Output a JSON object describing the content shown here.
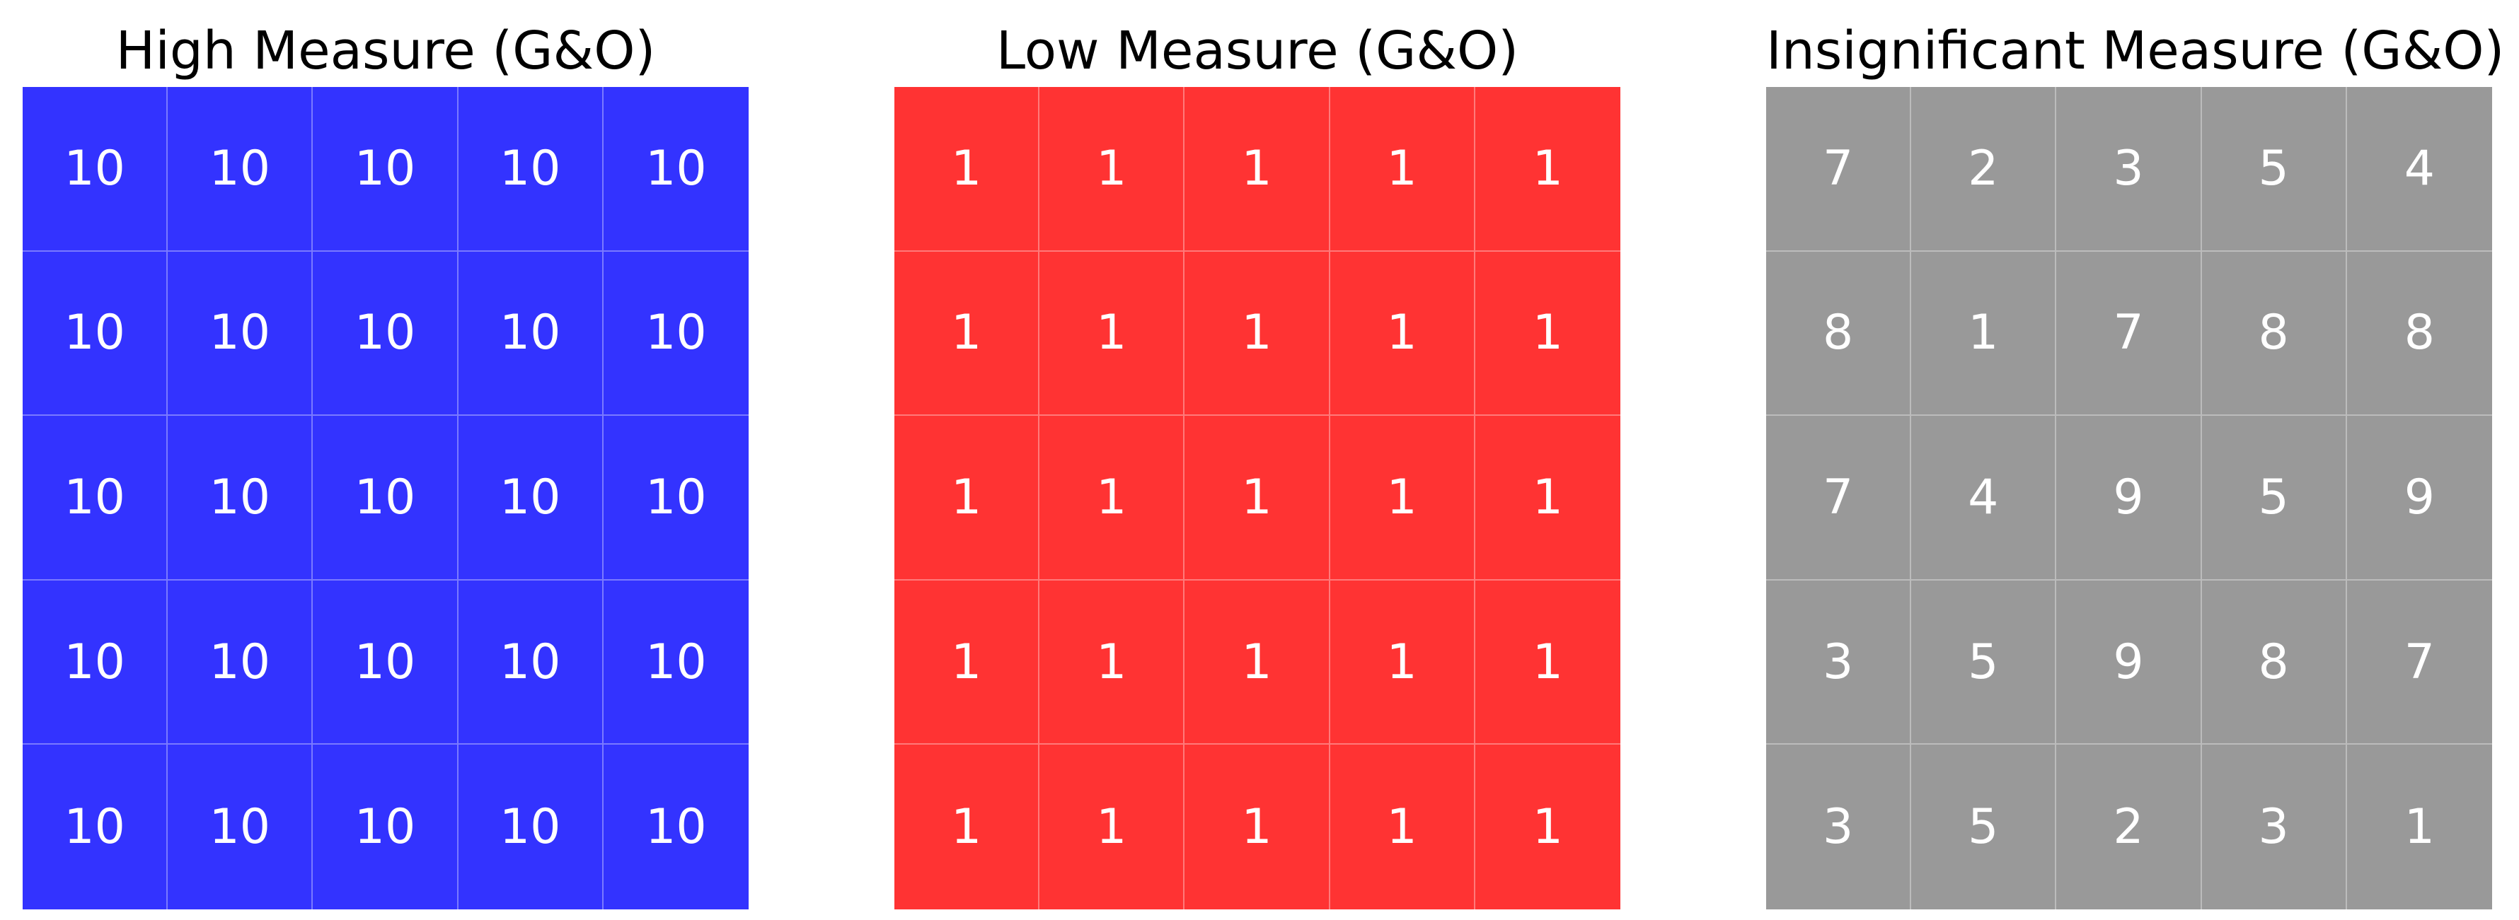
{
  "chart_data": [
    {
      "type": "heatmap",
      "title": "High Measure (G&O)",
      "color": "#3333ff",
      "rows": 5,
      "cols": 5,
      "values": [
        [
          10,
          10,
          10,
          10,
          10
        ],
        [
          10,
          10,
          10,
          10,
          10
        ],
        [
          10,
          10,
          10,
          10,
          10
        ],
        [
          10,
          10,
          10,
          10,
          10
        ],
        [
          10,
          10,
          10,
          10,
          10
        ]
      ]
    },
    {
      "type": "heatmap",
      "title": "Low Measure (G&O)",
      "color": "#ff3333",
      "rows": 5,
      "cols": 5,
      "values": [
        [
          1,
          1,
          1,
          1,
          1
        ],
        [
          1,
          1,
          1,
          1,
          1
        ],
        [
          1,
          1,
          1,
          1,
          1
        ],
        [
          1,
          1,
          1,
          1,
          1
        ],
        [
          1,
          1,
          1,
          1,
          1
        ]
      ]
    },
    {
      "type": "heatmap",
      "title": "Insignificant Measure (G&O)",
      "color": "#999999",
      "rows": 5,
      "cols": 5,
      "values": [
        [
          7,
          2,
          3,
          5,
          4
        ],
        [
          8,
          1,
          7,
          8,
          8
        ],
        [
          7,
          4,
          9,
          5,
          9
        ],
        [
          3,
          5,
          9,
          8,
          7
        ],
        [
          3,
          5,
          2,
          3,
          1
        ]
      ]
    }
  ]
}
